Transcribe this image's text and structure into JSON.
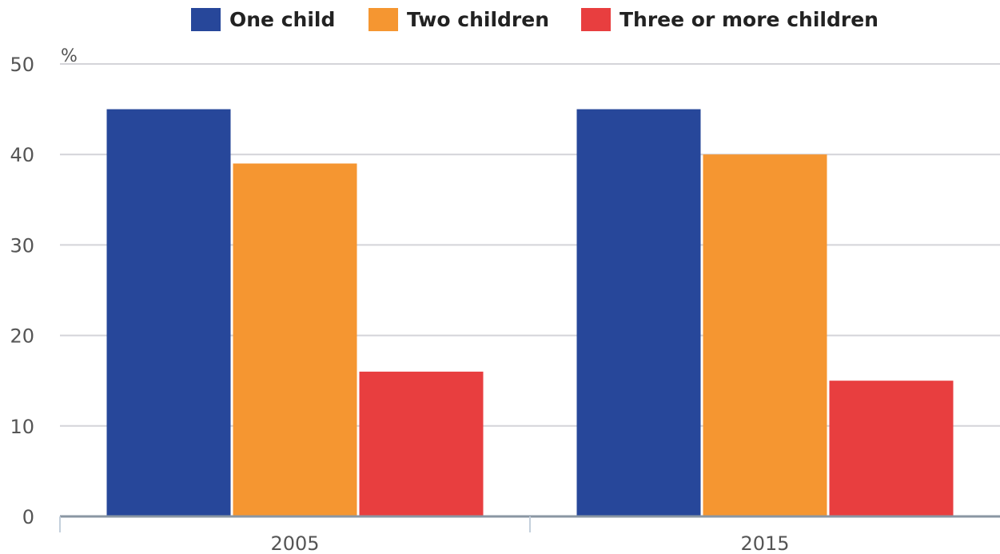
{
  "chart_data": {
    "type": "bar",
    "categories": [
      "2005",
      "2015"
    ],
    "series": [
      {
        "name": "One child",
        "values": [
          45,
          45
        ],
        "color": "#27479a"
      },
      {
        "name": "Two children",
        "values": [
          39,
          40
        ],
        "color": "#f59631"
      },
      {
        "name": "Three or more children",
        "values": [
          16,
          15
        ],
        "color": "#e83e3f"
      }
    ],
    "yunit": "%",
    "ylim": [
      0,
      50
    ],
    "yticks": [
      0,
      10,
      20,
      30,
      40,
      50
    ],
    "grid": true,
    "legend": "top-center"
  }
}
